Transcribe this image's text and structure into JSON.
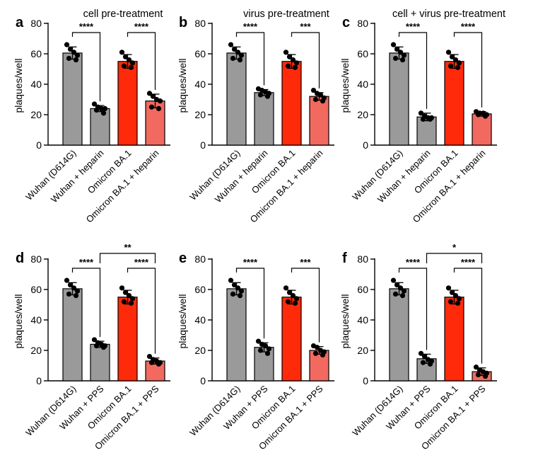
{
  "colors": {
    "gray_bar": "#9a9a9a",
    "red_bar": "#ff2a0a",
    "pink_bar": "#f2695f",
    "dot": "#000000"
  },
  "chart_data": [
    {
      "type": "bar",
      "panel": "a",
      "title": "cell pre-treatment",
      "ylabel": "plaques/well",
      "ylim": [
        0,
        80
      ],
      "yticks": [
        0,
        20,
        40,
        60,
        80
      ],
      "categories": [
        "Wuhan (D614G)",
        "Wuhan + heparin",
        "Omicron BA.1",
        "Omicron BA.1 + heparin"
      ],
      "values": [
        60.5,
        24,
        55,
        29
      ],
      "errors": [
        4,
        2,
        4.5,
        4.5
      ],
      "bar_colors": [
        "gray",
        "gray",
        "red",
        "pink"
      ],
      "points": [
        [
          66,
          63,
          61,
          59,
          57,
          56
        ],
        [
          27,
          25,
          24,
          24,
          23,
          21
        ],
        [
          61,
          58,
          56,
          54,
          52,
          51
        ],
        [
          34,
          32,
          30,
          29,
          25,
          24
        ]
      ],
      "comparisons": [
        {
          "groups": [
            0,
            1
          ],
          "label": "****",
          "level": 0
        },
        {
          "groups": [
            2,
            3
          ],
          "label": "****",
          "level": 0
        }
      ]
    },
    {
      "type": "bar",
      "panel": "b",
      "title": "virus pre-treatment",
      "ylabel": "plaques/well",
      "ylim": [
        0,
        80
      ],
      "yticks": [
        0,
        20,
        40,
        60,
        80
      ],
      "categories": [
        "Wuhan (D614G)",
        "Wuhan + heparin",
        "Omicron BA.1",
        "Omicron BA.1 + heparin"
      ],
      "values": [
        60.5,
        34.5,
        55,
        32
      ],
      "errors": [
        4,
        2,
        4.5,
        2.5
      ],
      "bar_colors": [
        "gray",
        "gray",
        "red",
        "pink"
      ],
      "points": [
        [
          66,
          63,
          61,
          59,
          57,
          56
        ],
        [
          37,
          36,
          35,
          34,
          33,
          32
        ],
        [
          61,
          58,
          56,
          54,
          52,
          51
        ],
        [
          36,
          34,
          33,
          31,
          30,
          29
        ]
      ],
      "comparisons": [
        {
          "groups": [
            0,
            1
          ],
          "label": "****",
          "level": 0
        },
        {
          "groups": [
            2,
            3
          ],
          "label": "***",
          "level": 0
        }
      ]
    },
    {
      "type": "bar",
      "panel": "c",
      "title": "cell + virus pre-treatment",
      "ylabel": "plaques/well",
      "ylim": [
        0,
        80
      ],
      "yticks": [
        0,
        20,
        40,
        60,
        80
      ],
      "categories": [
        "Wuhan (D614G)",
        "Wuhan + heparin",
        "Omicron BA.1",
        "Omicron BA.1 + heparin"
      ],
      "values": [
        60.5,
        18.5,
        55,
        20.5
      ],
      "errors": [
        4,
        2.5,
        4.5,
        1.5
      ],
      "bar_colors": [
        "gray",
        "gray",
        "red",
        "pink"
      ],
      "points": [
        [
          66,
          63,
          61,
          59,
          57,
          56
        ],
        [
          21,
          19,
          18,
          18,
          17,
          17
        ],
        [
          61,
          58,
          56,
          54,
          52,
          51
        ],
        [
          22,
          21,
          21,
          20,
          20,
          19
        ]
      ],
      "comparisons": [
        {
          "groups": [
            0,
            1
          ],
          "label": "****",
          "level": 0
        },
        {
          "groups": [
            2,
            3
          ],
          "label": "****",
          "level": 0
        }
      ]
    },
    {
      "type": "bar",
      "panel": "d",
      "title": "",
      "ylabel": "plaques/well",
      "ylim": [
        0,
        80
      ],
      "yticks": [
        0,
        20,
        40,
        60,
        80
      ],
      "categories": [
        "Wuhan (D614G)",
        "Wuhan + PPS",
        "Omicron BA.1",
        "Omicron BA.1 + PPS"
      ],
      "values": [
        60.5,
        24,
        55,
        13
      ],
      "errors": [
        4,
        2,
        4.5,
        2
      ],
      "bar_colors": [
        "gray",
        "gray",
        "red",
        "pink"
      ],
      "points": [
        [
          66,
          63,
          61,
          59,
          57,
          56
        ],
        [
          27,
          25,
          24,
          23,
          23,
          22
        ],
        [
          61,
          58,
          56,
          54,
          52,
          51
        ],
        [
          16,
          14,
          13,
          12,
          12,
          11
        ]
      ],
      "comparisons": [
        {
          "groups": [
            0,
            1
          ],
          "label": "****",
          "level": 0
        },
        {
          "groups": [
            2,
            3
          ],
          "label": "****",
          "level": 0
        },
        {
          "groups": [
            1,
            3
          ],
          "label": "**",
          "level": 1
        }
      ]
    },
    {
      "type": "bar",
      "panel": "e",
      "title": "",
      "ylabel": "plaques/well",
      "ylim": [
        0,
        80
      ],
      "yticks": [
        0,
        20,
        40,
        60,
        80
      ],
      "categories": [
        "Wuhan (D614G)",
        "Wuhan + PPS",
        "Omicron BA.1",
        "Omicron BA.1 + PPS"
      ],
      "values": [
        60.5,
        22,
        55,
        20
      ],
      "errors": [
        4,
        3,
        4.5,
        2.5
      ],
      "bar_colors": [
        "gray",
        "gray",
        "red",
        "pink"
      ],
      "points": [
        [
          66,
          63,
          61,
          59,
          57,
          56
        ],
        [
          26,
          24,
          23,
          21,
          20,
          18
        ],
        [
          61,
          58,
          56,
          54,
          52,
          51
        ],
        [
          23,
          22,
          20,
          19,
          18,
          17
        ]
      ],
      "comparisons": [
        {
          "groups": [
            0,
            1
          ],
          "label": "****",
          "level": 0
        },
        {
          "groups": [
            2,
            3
          ],
          "label": "***",
          "level": 0
        }
      ]
    },
    {
      "type": "bar",
      "panel": "f",
      "title": "",
      "ylabel": "plaques/well",
      "ylim": [
        0,
        80
      ],
      "yticks": [
        0,
        20,
        40,
        60,
        80
      ],
      "categories": [
        "Wuhan (D614G)",
        "Wuhan + PPS",
        "Omicron BA.1",
        "Omicron BA.1 + PPS"
      ],
      "values": [
        60.5,
        14.5,
        55,
        6
      ],
      "errors": [
        4,
        3,
        4.5,
        2.5
      ],
      "bar_colors": [
        "gray",
        "gray",
        "red",
        "pink"
      ],
      "points": [
        [
          66,
          63,
          61,
          59,
          57,
          56
        ],
        [
          18,
          16,
          14,
          13,
          12,
          11
        ],
        [
          61,
          58,
          56,
          54,
          52,
          51
        ],
        [
          9,
          7,
          6,
          5,
          4,
          3
        ]
      ],
      "comparisons": [
        {
          "groups": [
            0,
            1
          ],
          "label": "****",
          "level": 0
        },
        {
          "groups": [
            2,
            3
          ],
          "label": "****",
          "level": 0
        },
        {
          "groups": [
            1,
            3
          ],
          "label": "*",
          "level": 1
        }
      ]
    }
  ]
}
